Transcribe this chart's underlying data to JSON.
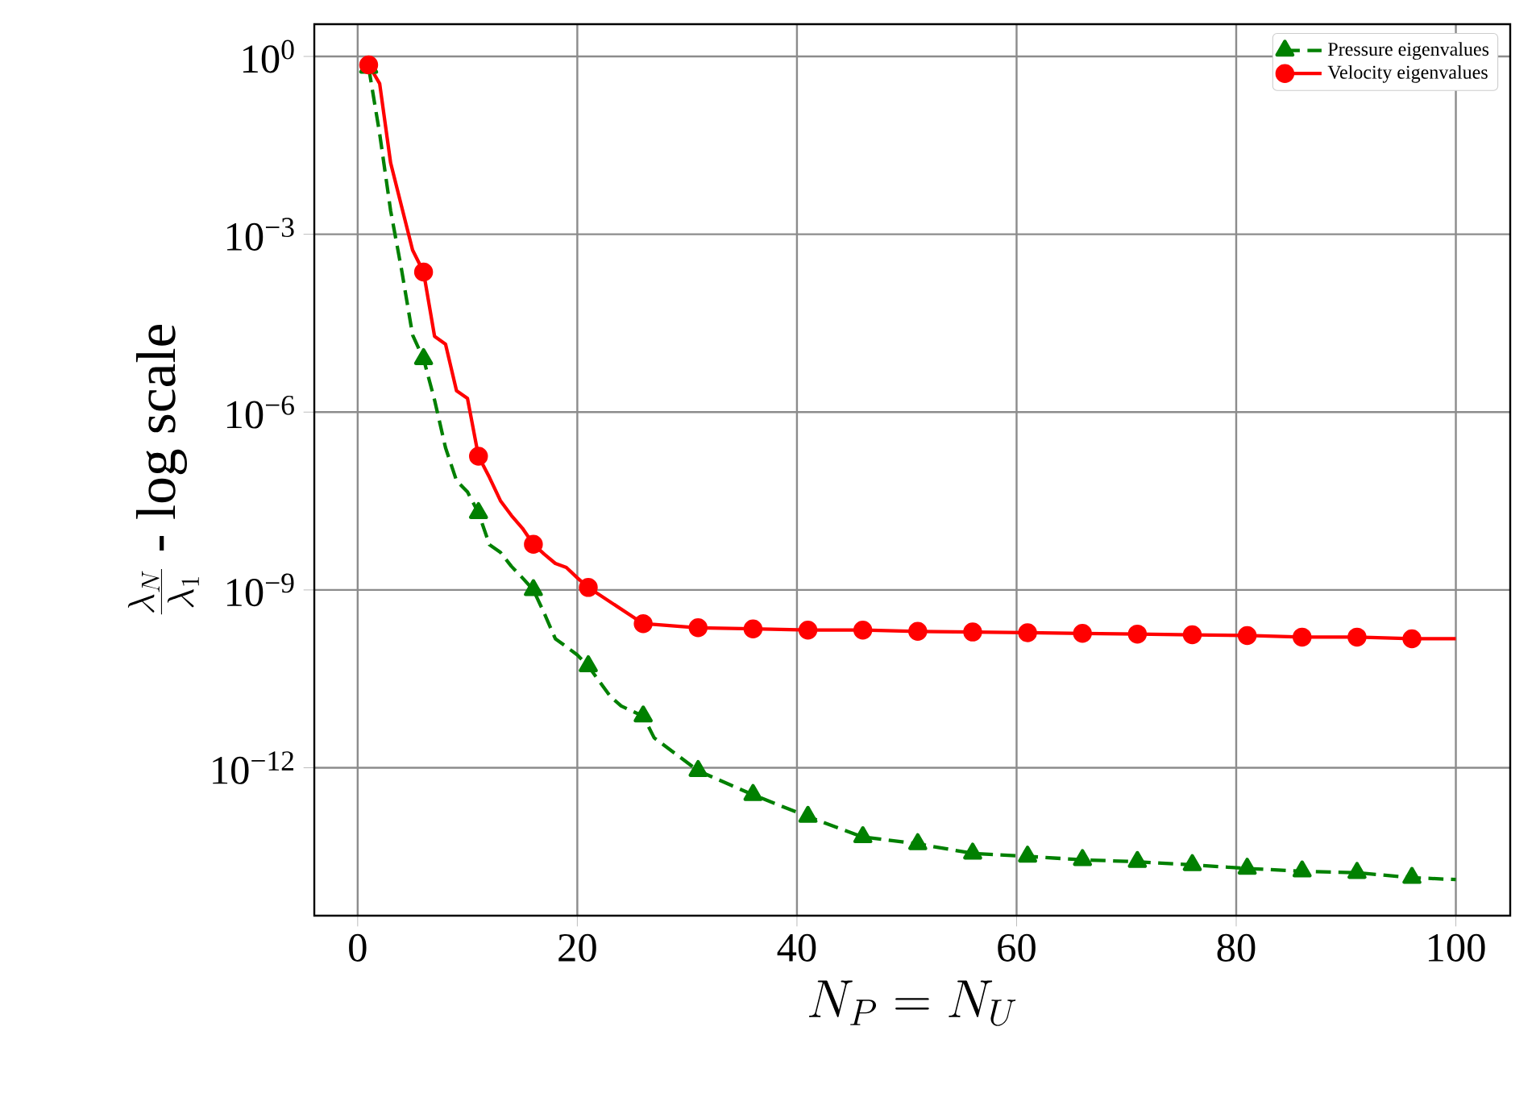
{
  "chart_data": {
    "type": "line",
    "xlabel": "N_P = N_U",
    "ylabel": "\\frac{\\lambda_N}{\\lambda_1}\\ \\mbox{- log scale}",
    "log": "y",
    "grid": true,
    "legend": "top right",
    "xlim": [
      -3.95,
      104.95
    ],
    "xticks": [
      0,
      20,
      40,
      60,
      80,
      100
    ],
    "ylim": [
      3.2e-15,
      3.5
    ],
    "yticks": [
      {
        "value": 1,
        "label": "10$^{0}$"
      },
      {
        "value": 0.001,
        "label": "10$^{−3}$"
      },
      {
        "value": 1e-06,
        "label": "10$^{−6}$"
      },
      {
        "value": 1e-09,
        "label": "10$^{−9}$"
      },
      {
        "value": 1e-12,
        "label": "10$^{−12}$"
      }
    ],
    "series": [
      {
        "name": "Pressure eigenvalues",
        "color": "#008000",
        "marker": "triangle",
        "line_style": "dashed",
        "x": [
          1,
          2,
          3,
          4,
          5,
          6,
          7,
          8,
          9,
          10,
          11,
          12,
          13,
          14,
          15,
          16,
          17,
          18,
          19,
          20,
          21,
          23,
          24,
          26,
          27,
          31,
          36,
          41,
          46,
          51,
          56,
          61,
          66,
          71,
          76,
          81,
          86,
          91,
          96,
          100
        ],
        "values": [
          0.65,
          0.05,
          0.0025,
          0.00025,
          2e-05,
          7.9e-06,
          1.6e-06,
          2.5e-07,
          7e-08,
          4.5e-08,
          2e-08,
          5.8e-09,
          4.3e-09,
          2.5e-09,
          1.6e-09,
          1e-09,
          4e-10,
          1.5e-10,
          1.1e-10,
          8e-11,
          5.2e-11,
          1.6e-11,
          1.1e-11,
          7.4e-12,
          3.2e-12,
          8.9e-13,
          3.5e-13,
          1.5e-13,
          6.8e-14,
          5.2e-14,
          3.6e-14,
          3.2e-14,
          2.8e-14,
          2.6e-14,
          2.3e-14,
          2e-14,
          1.8e-14,
          1.7e-14,
          1.4e-14,
          1.3e-14
        ]
      },
      {
        "name": "Velocity eigenvalues",
        "color": "#ff0000",
        "marker": "circle",
        "line_style": "solid",
        "x": [
          1,
          2,
          3,
          5,
          6,
          7,
          8,
          9,
          10,
          11,
          12,
          13,
          14,
          15,
          16,
          17,
          18,
          19,
          20,
          21,
          26,
          31,
          36,
          41,
          46,
          51,
          56,
          61,
          66,
          71,
          76,
          81,
          86,
          91,
          96,
          100
        ],
        "values": [
          0.72,
          0.35,
          0.016,
          0.00054,
          0.00023,
          1.9e-05,
          1.4e-05,
          2.3e-06,
          1.7e-06,
          1.8e-07,
          7.9e-08,
          3.2e-08,
          1.8e-08,
          1.1e-08,
          5.9e-09,
          4e-09,
          2.8e-09,
          2.4e-09,
          1.6e-09,
          1.1e-09,
          2.7e-10,
          2.3e-10,
          2.2e-10,
          2.1e-10,
          2.1e-10,
          2e-10,
          1.95e-10,
          1.9e-10,
          1.85e-10,
          1.8e-10,
          1.75e-10,
          1.7e-10,
          1.6e-10,
          1.6e-10,
          1.5e-10,
          1.5e-10
        ]
      }
    ]
  }
}
